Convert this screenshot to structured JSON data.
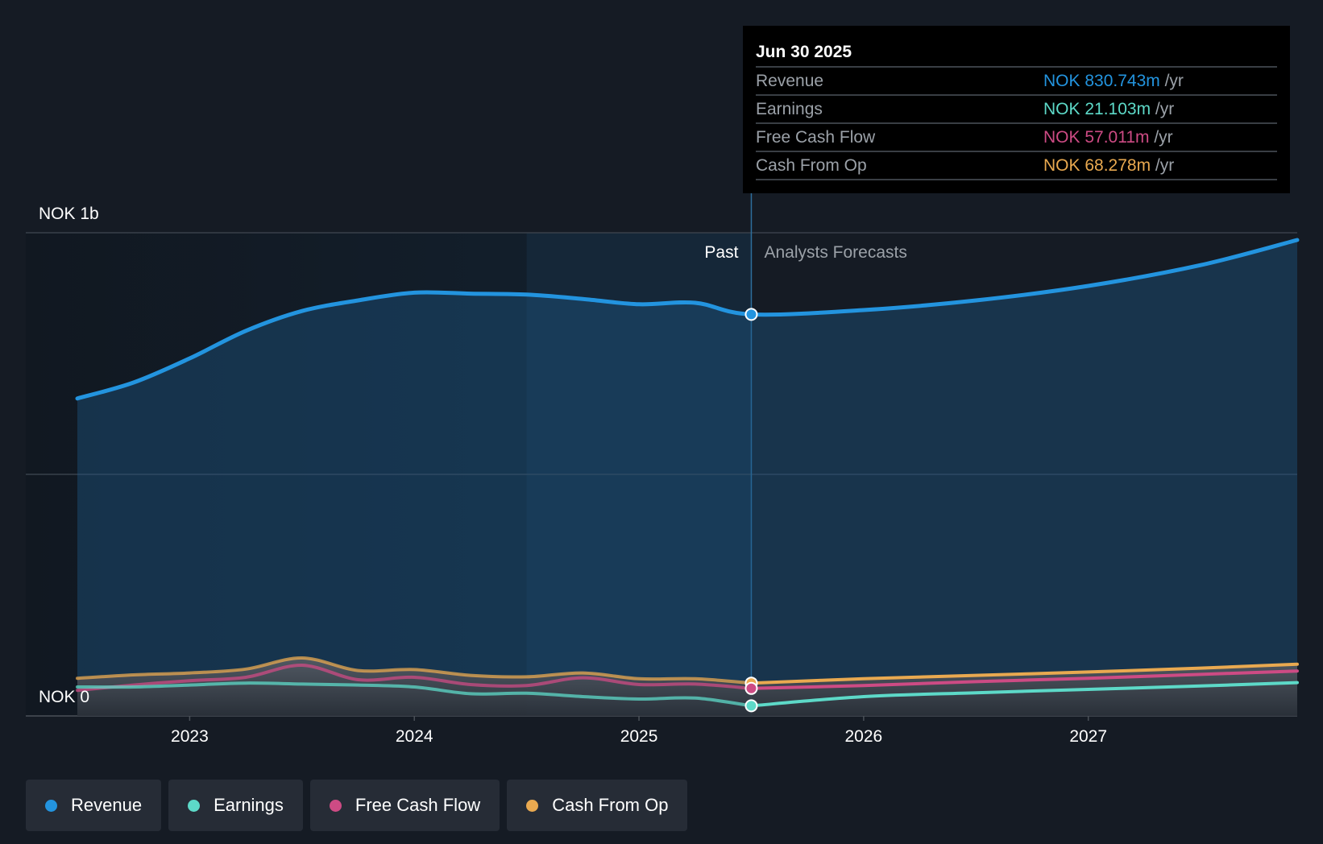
{
  "chart_data": {
    "type": "area",
    "currency": "NOK",
    "y_axis": {
      "top_label": "NOK 1b",
      "bottom_label": "NOK 0",
      "ylim": [
        0,
        1000
      ]
    },
    "x_ticks": [
      "2023",
      "2024",
      "2025",
      "2026",
      "2027"
    ],
    "x_range": [
      2022.5,
      2027.93
    ],
    "past_label": "Past",
    "forecast_label": "Analysts Forecasts",
    "divider_x": 2025.5,
    "highlight_start_x": 2024.5,
    "series": [
      {
        "name": "Revenue",
        "color": "#2394df",
        "area": true,
        "points": [
          [
            2022.5,
            657
          ],
          [
            2022.75,
            690
          ],
          [
            2023.0,
            740
          ],
          [
            2023.25,
            797
          ],
          [
            2023.5,
            838
          ],
          [
            2023.75,
            860
          ],
          [
            2024.0,
            876
          ],
          [
            2024.25,
            874
          ],
          [
            2024.5,
            872
          ],
          [
            2024.75,
            863
          ],
          [
            2025.0,
            852
          ],
          [
            2025.25,
            855
          ],
          [
            2025.5,
            831
          ],
          [
            2026.0,
            840
          ],
          [
            2026.5,
            860
          ],
          [
            2027.0,
            890
          ],
          [
            2027.5,
            933
          ],
          [
            2027.93,
            985
          ]
        ]
      },
      {
        "name": "Cash From Op",
        "color": "#e9a950",
        "area": false,
        "points": [
          [
            2022.5,
            78
          ],
          [
            2022.75,
            85
          ],
          [
            2023.0,
            89
          ],
          [
            2023.25,
            97
          ],
          [
            2023.5,
            120
          ],
          [
            2023.75,
            94
          ],
          [
            2024.0,
            96
          ],
          [
            2024.25,
            84
          ],
          [
            2024.5,
            81
          ],
          [
            2024.75,
            89
          ],
          [
            2025.0,
            77
          ],
          [
            2025.25,
            77
          ],
          [
            2025.5,
            68
          ],
          [
            2026.0,
            77
          ],
          [
            2026.5,
            84
          ],
          [
            2027.0,
            91
          ],
          [
            2027.5,
            99
          ],
          [
            2027.93,
            107
          ]
        ]
      },
      {
        "name": "Free Cash Flow",
        "color": "#cd4b84",
        "area": false,
        "points": [
          [
            2022.5,
            53
          ],
          [
            2022.75,
            64
          ],
          [
            2023.0,
            73
          ],
          [
            2023.25,
            80
          ],
          [
            2023.5,
            105
          ],
          [
            2023.75,
            75
          ],
          [
            2024.0,
            80
          ],
          [
            2024.25,
            65
          ],
          [
            2024.5,
            63
          ],
          [
            2024.75,
            79
          ],
          [
            2025.0,
            65
          ],
          [
            2025.25,
            66
          ],
          [
            2025.5,
            57
          ],
          [
            2026.0,
            63
          ],
          [
            2026.5,
            71
          ],
          [
            2027.0,
            78
          ],
          [
            2027.5,
            86
          ],
          [
            2027.93,
            93
          ]
        ]
      },
      {
        "name": "Earnings",
        "color": "#5dd9c8",
        "area": false,
        "points": [
          [
            2022.5,
            60
          ],
          [
            2022.75,
            60
          ],
          [
            2023.0,
            64
          ],
          [
            2023.25,
            68
          ],
          [
            2023.5,
            66
          ],
          [
            2023.75,
            64
          ],
          [
            2024.0,
            60
          ],
          [
            2024.25,
            46
          ],
          [
            2024.5,
            47
          ],
          [
            2024.75,
            40
          ],
          [
            2025.0,
            35
          ],
          [
            2025.25,
            37
          ],
          [
            2025.5,
            21
          ],
          [
            2026.0,
            40
          ],
          [
            2026.5,
            48
          ],
          [
            2027.0,
            55
          ],
          [
            2027.5,
            62
          ],
          [
            2027.93,
            69
          ]
        ]
      }
    ]
  },
  "tooltip": {
    "date": "Jun 30 2025",
    "rows": [
      {
        "label": "Revenue",
        "value": "NOK 830.743m",
        "unit": "/yr",
        "color": "#2394df"
      },
      {
        "label": "Earnings",
        "value": "NOK 21.103m",
        "unit": "/yr",
        "color": "#5dd9c8"
      },
      {
        "label": "Free Cash Flow",
        "value": "NOK 57.011m",
        "unit": "/yr",
        "color": "#cd4b84"
      },
      {
        "label": "Cash From Op",
        "value": "NOK 68.278m",
        "unit": "/yr",
        "color": "#e9a950"
      }
    ]
  },
  "legend": [
    {
      "label": "Revenue",
      "color": "#2394df"
    },
    {
      "label": "Earnings",
      "color": "#5dd9c8"
    },
    {
      "label": "Free Cash Flow",
      "color": "#cd4b84"
    },
    {
      "label": "Cash From Op",
      "color": "#e9a950"
    }
  ]
}
